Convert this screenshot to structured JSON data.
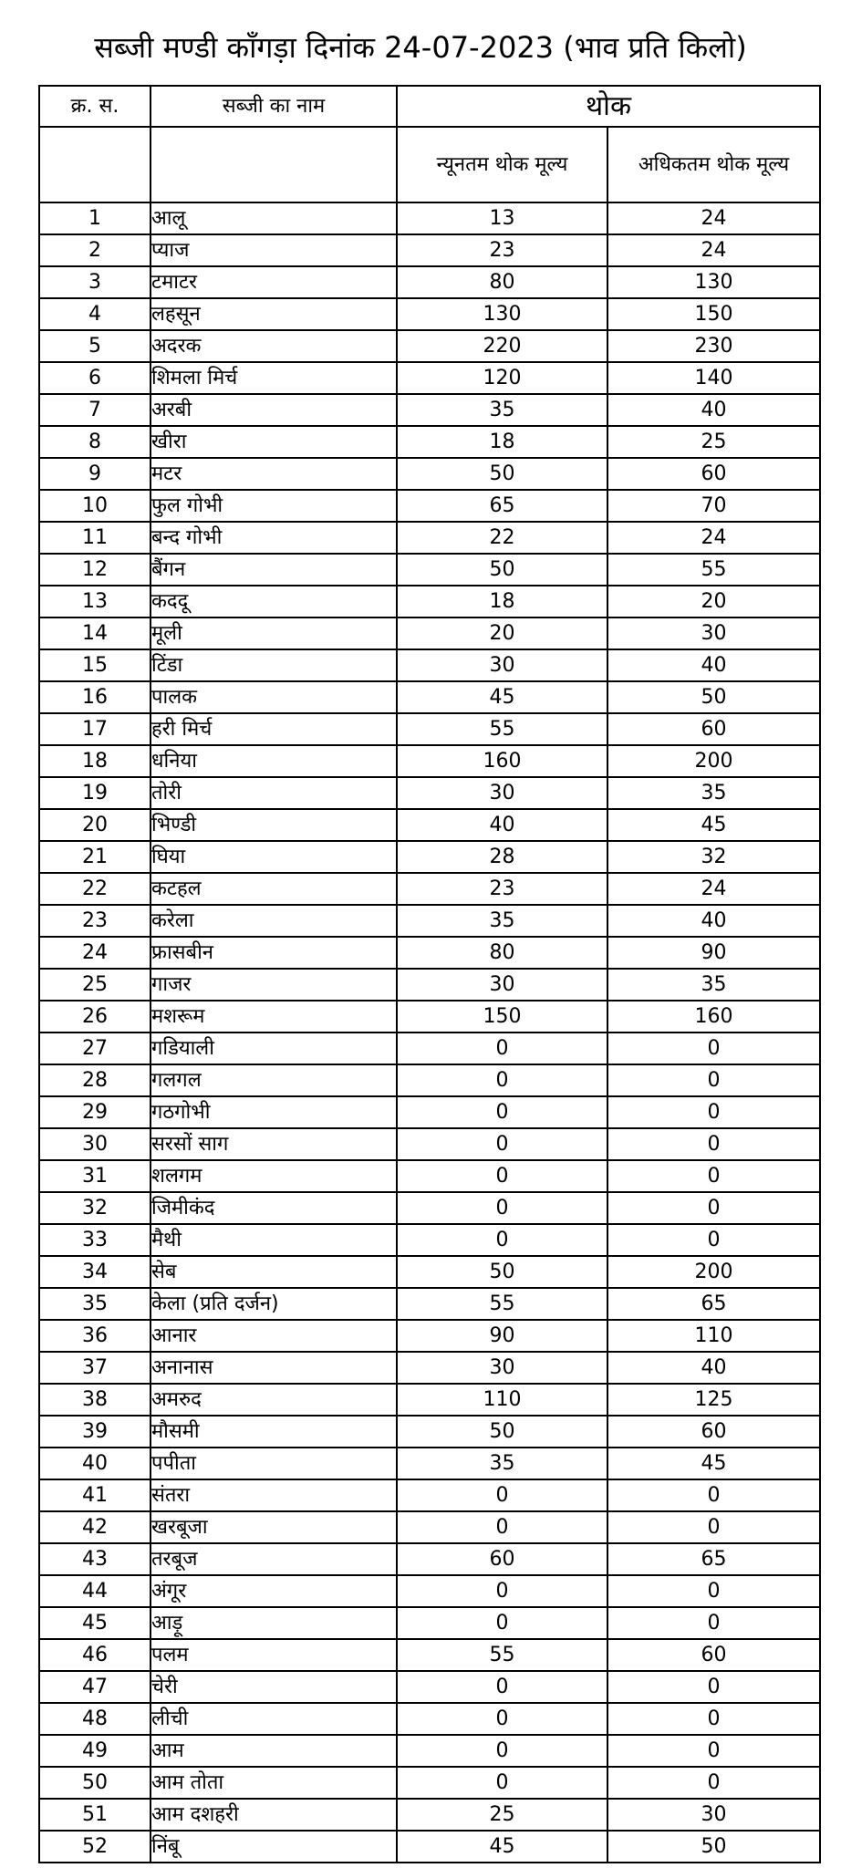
{
  "title": "सब्जी मण्डी काँगड़ा दिनांक 24-07-2023 (भाव प्रति किलो)",
  "headers": {
    "sno": "क्र. स.",
    "name": "सब्जी का नाम",
    "wholesale": "थोक",
    "min": "न्यूनतम थोक मूल्य",
    "max": "अधिकतम थोक मूल्य"
  },
  "rows": [
    {
      "sno": "1",
      "name": "आलू",
      "min": "13",
      "max": "24"
    },
    {
      "sno": "2",
      "name": "प्याज",
      "min": "23",
      "max": "24"
    },
    {
      "sno": "3",
      "name": "टमाटर",
      "min": "80",
      "max": "130"
    },
    {
      "sno": "4",
      "name": "लहसून",
      "min": "130",
      "max": "150"
    },
    {
      "sno": "5",
      "name": "अदरक",
      "min": "220",
      "max": "230"
    },
    {
      "sno": "6",
      "name": "शिमला मिर्च",
      "min": "120",
      "max": "140"
    },
    {
      "sno": "7",
      "name": "अरबी",
      "min": "35",
      "max": "40"
    },
    {
      "sno": "8",
      "name": "खीरा",
      "min": "18",
      "max": "25"
    },
    {
      "sno": "9",
      "name": "मटर",
      "min": "50",
      "max": "60"
    },
    {
      "sno": "10",
      "name": "फुल गोभी",
      "min": "65",
      "max": "70"
    },
    {
      "sno": "11",
      "name": "बन्द गोभी",
      "min": "22",
      "max": "24"
    },
    {
      "sno": "12",
      "name": "बैंगन",
      "min": "50",
      "max": "55"
    },
    {
      "sno": "13",
      "name": "कददू",
      "min": "18",
      "max": "20"
    },
    {
      "sno": "14",
      "name": "मूली",
      "min": "20",
      "max": "30"
    },
    {
      "sno": "15",
      "name": "टिंडा",
      "min": "30",
      "max": "40"
    },
    {
      "sno": "16",
      "name": "पालक",
      "min": "45",
      "max": "50"
    },
    {
      "sno": "17",
      "name": "हरी मिर्च",
      "min": "55",
      "max": "60"
    },
    {
      "sno": "18",
      "name": "धनिया",
      "min": "160",
      "max": "200"
    },
    {
      "sno": "19",
      "name": "तोरी",
      "min": "30",
      "max": "35"
    },
    {
      "sno": "20",
      "name": "भिण्डी",
      "min": "40",
      "max": "45"
    },
    {
      "sno": "21",
      "name": "घिया",
      "min": "28",
      "max": "32"
    },
    {
      "sno": "22",
      "name": "कटहल",
      "min": "23",
      "max": "24"
    },
    {
      "sno": "23",
      "name": "करेला",
      "min": "35",
      "max": "40"
    },
    {
      "sno": "24",
      "name": "फ्रासबीन",
      "min": "80",
      "max": "90"
    },
    {
      "sno": "25",
      "name": "गाजर",
      "min": "30",
      "max": "35"
    },
    {
      "sno": "26",
      "name": "मशरूम",
      "min": "150",
      "max": "160"
    },
    {
      "sno": "27",
      "name": "गडियाली",
      "min": "0",
      "max": "0"
    },
    {
      "sno": "28",
      "name": "गलगल",
      "min": "0",
      "max": "0"
    },
    {
      "sno": "29",
      "name": "गठगोभी",
      "min": "0",
      "max": "0"
    },
    {
      "sno": "30",
      "name": "सरसों साग",
      "min": "0",
      "max": "0"
    },
    {
      "sno": "31",
      "name": "शलगम",
      "min": "0",
      "max": "0"
    },
    {
      "sno": "32",
      "name": "जिमीकंद",
      "min": "0",
      "max": "0"
    },
    {
      "sno": "33",
      "name": "मैथी",
      "min": "0",
      "max": "0"
    },
    {
      "sno": "34",
      "name": "सेब",
      "min": "50",
      "max": "200"
    },
    {
      "sno": "35",
      "name": "केला (प्रति दर्जन)",
      "min": "55",
      "max": "65"
    },
    {
      "sno": "36",
      "name": "आनार",
      "min": "90",
      "max": "110"
    },
    {
      "sno": "37",
      "name": "अनानास",
      "min": "30",
      "max": "40"
    },
    {
      "sno": "38",
      "name": "अमरुद",
      "min": "110",
      "max": "125"
    },
    {
      "sno": "39",
      "name": "मौसमी",
      "min": "50",
      "max": "60"
    },
    {
      "sno": "40",
      "name": "पपीता",
      "min": "35",
      "max": "45"
    },
    {
      "sno": "41",
      "name": "संतरा",
      "min": "0",
      "max": "0"
    },
    {
      "sno": "42",
      "name": "खरबूजा",
      "min": "0",
      "max": "0"
    },
    {
      "sno": "43",
      "name": "तरबूज",
      "min": "60",
      "max": "65"
    },
    {
      "sno": "44",
      "name": "अंगूर",
      "min": "0",
      "max": "0"
    },
    {
      "sno": "45",
      "name": "आड़ू",
      "min": "0",
      "max": "0"
    },
    {
      "sno": "46",
      "name": "पलम",
      "min": "55",
      "max": "60"
    },
    {
      "sno": "47",
      "name": "चेरी",
      "min": "0",
      "max": "0"
    },
    {
      "sno": "48",
      "name": "लीची",
      "min": "0",
      "max": "0"
    },
    {
      "sno": "49",
      "name": "आम",
      "min": "0",
      "max": "0"
    },
    {
      "sno": "50",
      "name": "आम तोता",
      "min": "0",
      "max": "0"
    },
    {
      "sno": "51",
      "name": "आम दशहरी",
      "min": "25",
      "max": "30"
    },
    {
      "sno": "52",
      "name": "निंबू",
      "min": "45",
      "max": "50"
    }
  ]
}
